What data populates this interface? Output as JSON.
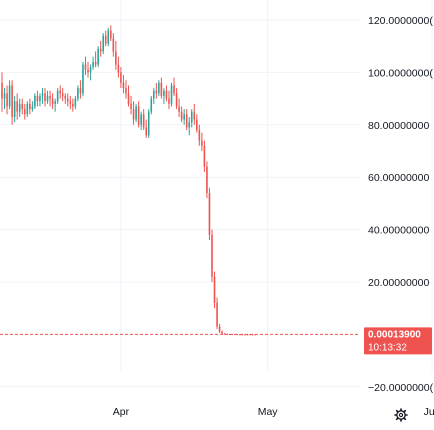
{
  "chart_data": {
    "type": "candlestick",
    "colors": {
      "up": "#26a69a",
      "down": "#ef5350",
      "grid": "#f0f3fa",
      "text": "#131722",
      "price_line": "#ef5350"
    },
    "y_ticks": [
      {
        "value": 120,
        "label": "120.0000000("
      },
      {
        "value": 100,
        "label": "100.0000000("
      },
      {
        "value": 80,
        "label": "80.00000000"
      },
      {
        "value": 60,
        "label": "60.00000000"
      },
      {
        "value": 40,
        "label": "40.00000000"
      },
      {
        "value": 20,
        "label": "20.00000000"
      },
      {
        "value": -20,
        "label": "−20.0000000("
      }
    ],
    "ylim": [
      -25,
      128
    ],
    "x_ticks": [
      {
        "index": 47,
        "label": "Apr"
      },
      {
        "index": 105,
        "label": "May"
      },
      {
        "index": 170,
        "label": "Jun"
      }
    ],
    "last_price": {
      "value": 0.000139,
      "label": "0.00013900",
      "countdown": "10:13:32"
    },
    "settings_icon": "gear-icon",
    "candles": [
      [
        96,
        100,
        85,
        90
      ],
      [
        90,
        94,
        86,
        92
      ],
      [
        92,
        95,
        84,
        87
      ],
      [
        87,
        97,
        86,
        95
      ],
      [
        95,
        97,
        80,
        83
      ],
      [
        83,
        91,
        81,
        89
      ],
      [
        89,
        92,
        82,
        85
      ],
      [
        85,
        90,
        83,
        88
      ],
      [
        88,
        90,
        84,
        86
      ],
      [
        86,
        88,
        82,
        84
      ],
      [
        84,
        89,
        83,
        88
      ],
      [
        88,
        90,
        84,
        86
      ],
      [
        86,
        89,
        85,
        87
      ],
      [
        87,
        92,
        86,
        91
      ],
      [
        91,
        93,
        87,
        89
      ],
      [
        89,
        92,
        87,
        91
      ],
      [
        91,
        94,
        88,
        92
      ],
      [
        92,
        94,
        87,
        89
      ],
      [
        89,
        93,
        88,
        91
      ],
      [
        91,
        93,
        87,
        90
      ],
      [
        90,
        92,
        86,
        88
      ],
      [
        88,
        90,
        85,
        89
      ],
      [
        89,
        94,
        88,
        93
      ],
      [
        93,
        95,
        90,
        92
      ],
      [
        92,
        94,
        89,
        91
      ],
      [
        91,
        92,
        88,
        90
      ],
      [
        90,
        92,
        87,
        89
      ],
      [
        89,
        91,
        86,
        88
      ],
      [
        88,
        90,
        85,
        87
      ],
      [
        87,
        91,
        86,
        90
      ],
      [
        90,
        95,
        89,
        94
      ],
      [
        94,
        97,
        90,
        92
      ],
      [
        92,
        104,
        91,
        103
      ],
      [
        103,
        106,
        99,
        101
      ],
      [
        101,
        104,
        98,
        100
      ],
      [
        100,
        103,
        97,
        102
      ],
      [
        102,
        106,
        101,
        104
      ],
      [
        104,
        108,
        102,
        103
      ],
      [
        103,
        110,
        102,
        109
      ],
      [
        109,
        112,
        106,
        108
      ],
      [
        108,
        115,
        107,
        114
      ],
      [
        114,
        116,
        110,
        111
      ],
      [
        111,
        117,
        110,
        116
      ],
      [
        116,
        118,
        112,
        113
      ],
      [
        113,
        115,
        106,
        108
      ],
      [
        108,
        112,
        101,
        103
      ],
      [
        103,
        106,
        98,
        100
      ],
      [
        100,
        102,
        94,
        96
      ],
      [
        96,
        99,
        92,
        94
      ],
      [
        94,
        97,
        90,
        92
      ],
      [
        92,
        95,
        87,
        88
      ],
      [
        88,
        91,
        84,
        86
      ],
      [
        86,
        89,
        80,
        82
      ],
      [
        82,
        88,
        81,
        87
      ],
      [
        87,
        89,
        79,
        80
      ],
      [
        80,
        85,
        78,
        84
      ],
      [
        84,
        86,
        78,
        79
      ],
      [
        79,
        82,
        75,
        76
      ],
      [
        76,
        86,
        75,
        85
      ],
      [
        85,
        91,
        84,
        90
      ],
      [
        90,
        94,
        88,
        93
      ],
      [
        93,
        96,
        90,
        92
      ],
      [
        92,
        97,
        91,
        96
      ],
      [
        96,
        98,
        90,
        91
      ],
      [
        91,
        94,
        88,
        93
      ],
      [
        93,
        95,
        89,
        90
      ],
      [
        90,
        93,
        86,
        88
      ],
      [
        88,
        96,
        87,
        95
      ],
      [
        95,
        98,
        91,
        92
      ],
      [
        92,
        94,
        86,
        87
      ],
      [
        87,
        90,
        83,
        85
      ],
      [
        85,
        87,
        81,
        82
      ],
      [
        82,
        86,
        80,
        84
      ],
      [
        84,
        86,
        78,
        79
      ],
      [
        79,
        83,
        76,
        81
      ],
      [
        81,
        86,
        79,
        85
      ],
      [
        85,
        88,
        80,
        82
      ],
      [
        82,
        84,
        77,
        78
      ],
      [
        78,
        80,
        72,
        74
      ],
      [
        74,
        77,
        70,
        72
      ],
      [
        72,
        74,
        62,
        64
      ],
      [
        64,
        66,
        52,
        54
      ],
      [
        54,
        56,
        36,
        38
      ],
      [
        38,
        40,
        20,
        22
      ],
      [
        22,
        24,
        10,
        12
      ],
      [
        12,
        14,
        2,
        3
      ],
      [
        3,
        4,
        0.5,
        1
      ],
      [
        1,
        1.5,
        0.2,
        0.3
      ],
      [
        0.3,
        0.5,
        0.1,
        0.2
      ],
      [
        0.2,
        0.3,
        0.1,
        0.15
      ],
      [
        0.15,
        0.2,
        0.1,
        0.12
      ],
      [
        0.12,
        0.15,
        0.1,
        0.11
      ],
      [
        0.11,
        0.12,
        0.1,
        0.1
      ],
      [
        0.1,
        0.11,
        0.05,
        0.06
      ],
      [
        0.06,
        0.08,
        0.01,
        0.02
      ],
      [
        0.02,
        0.03,
        0.001,
        0.01
      ],
      [
        0.01,
        0.02,
        0.0005,
        0.005
      ],
      [
        0.005,
        0.006,
        0.0002,
        0.001
      ],
      [
        0.001,
        0.002,
        0.0001,
        0.0005
      ],
      [
        0.0005,
        0.0006,
        0.0001,
        0.0002
      ],
      [
        0.0002,
        0.0003,
        0.0001,
        0.000139
      ]
    ]
  }
}
